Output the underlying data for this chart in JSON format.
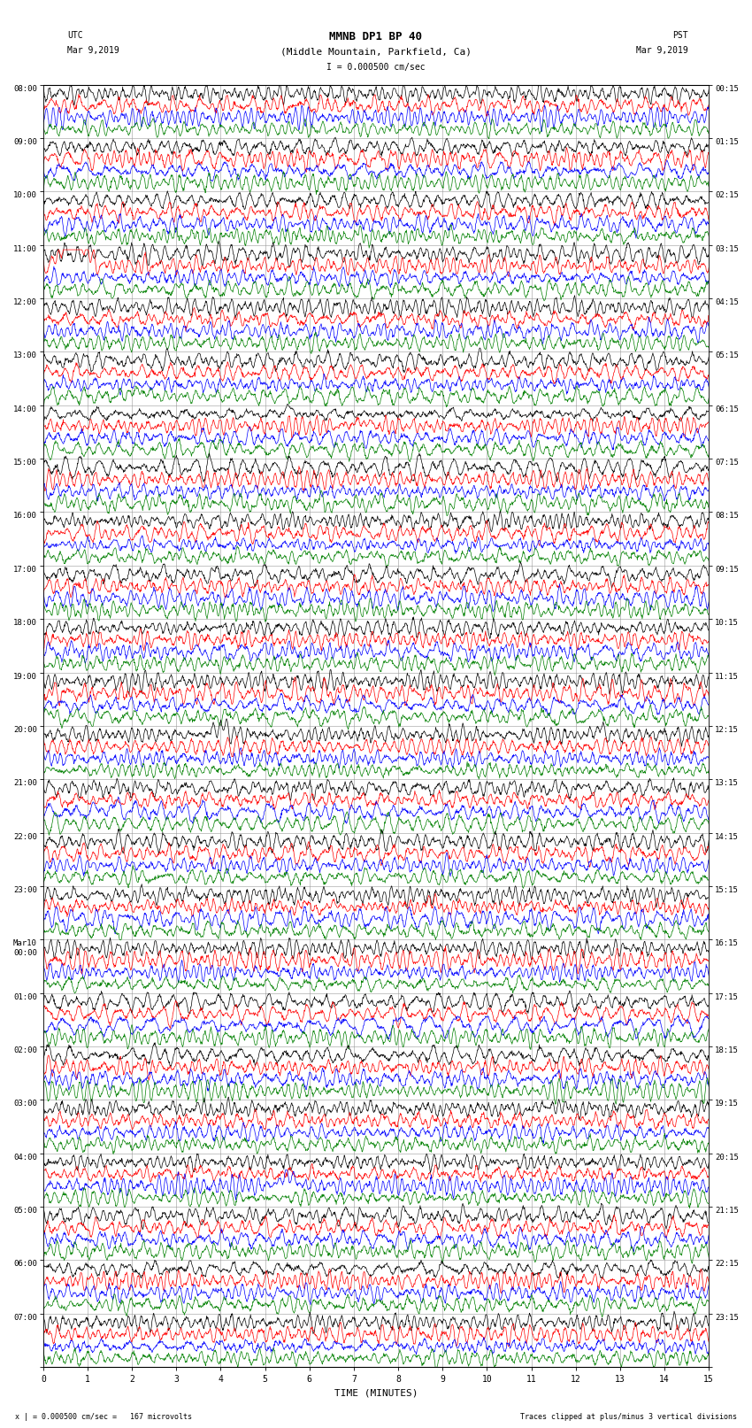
{
  "title_line1": "MMNB DP1 BP 40",
  "title_line2": "(Middle Mountain, Parkfield, Ca)",
  "scale_label": "I = 0.000500 cm/sec",
  "left_label": "UTC",
  "left_date": "Mar 9,2019",
  "right_label": "PST",
  "right_date": "Mar 9,2019",
  "xlabel": "TIME (MINUTES)",
  "bottom_left": "x | = 0.000500 cm/sec =   167 microvolts",
  "bottom_right": "Traces clipped at plus/minus 3 vertical divisions",
  "utc_times": [
    "08:00",
    "09:00",
    "10:00",
    "11:00",
    "12:00",
    "13:00",
    "14:00",
    "15:00",
    "16:00",
    "17:00",
    "18:00",
    "19:00",
    "20:00",
    "21:00",
    "22:00",
    "23:00",
    "Mar10\n00:00",
    "01:00",
    "02:00",
    "03:00",
    "04:00",
    "05:00",
    "06:00",
    "07:00"
  ],
  "pst_times": [
    "00:15",
    "01:15",
    "02:15",
    "03:15",
    "04:15",
    "05:15",
    "06:15",
    "07:15",
    "08:15",
    "09:15",
    "10:15",
    "11:15",
    "12:15",
    "13:15",
    "14:15",
    "15:15",
    "16:15",
    "17:15",
    "18:15",
    "19:15",
    "20:15",
    "21:15",
    "22:15",
    "23:15"
  ],
  "n_hour_rows": 24,
  "traces_per_hour": 4,
  "colors": [
    "black",
    "red",
    "blue",
    "green"
  ],
  "xmin": 0,
  "xmax": 15,
  "bg_color": "white",
  "grid_color": "#999999",
  "trace_lw": 0.5
}
